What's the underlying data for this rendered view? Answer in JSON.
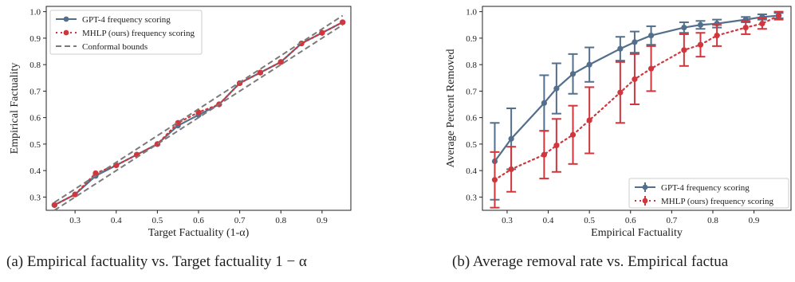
{
  "captions": {
    "a": "(a) Empirical factuality vs. Target factuality 1 − α",
    "b": "(b) Average removal rate vs. Empirical factua"
  },
  "colors": {
    "gpt4": "#536f8c",
    "mhlp": "#d2363d",
    "bounds": "#7a7a7a",
    "errbar_mhlp": "#d2363d",
    "errbar_gpt4": "#536f8c"
  },
  "chart_data": [
    {
      "type": "line",
      "xlabel": "Target Factuality (1-α)",
      "ylabel": "Empirical Factuality",
      "xlim": [
        0.23,
        0.97
      ],
      "ylim": [
        0.25,
        1.02
      ],
      "xticks": [
        "0.3",
        "0.4",
        "0.5",
        "0.6",
        "0.7",
        "0.8",
        "0.9"
      ],
      "yticks": [
        "0.3",
        "0.4",
        "0.5",
        "0.6",
        "0.7",
        "0.8",
        "0.9",
        "1.0"
      ],
      "legend_position": "top-left",
      "x": [
        0.25,
        0.3,
        0.35,
        0.4,
        0.45,
        0.5,
        0.55,
        0.6,
        0.65,
        0.7,
        0.75,
        0.8,
        0.85,
        0.9,
        0.95
      ],
      "series": [
        {
          "name": "GPT-4 frequency scoring",
          "style": "solid",
          "marker": "circle",
          "values": [
            0.27,
            0.31,
            0.38,
            0.42,
            0.46,
            0.5,
            0.57,
            0.61,
            0.65,
            0.73,
            0.77,
            0.81,
            0.88,
            0.92,
            0.96
          ]
        },
        {
          "name": "MHLP (ours) frequency scoring",
          "style": "dotted",
          "marker": "circle",
          "values": [
            0.27,
            0.31,
            0.39,
            0.42,
            0.46,
            0.5,
            0.58,
            0.62,
            0.65,
            0.73,
            0.77,
            0.81,
            0.88,
            0.92,
            0.96
          ]
        },
        {
          "name": "Conformal bounds",
          "style": "dashed",
          "marker": "none",
          "lines": [
            {
              "x": [
                0.25,
                0.95
              ],
              "y": [
                0.25,
                0.95
              ]
            },
            {
              "x": [
                0.25,
                0.95
              ],
              "y": [
                0.28,
                0.985
              ]
            }
          ]
        }
      ]
    },
    {
      "type": "line",
      "xlabel": "Empirical Factuality",
      "ylabel": "Average Percent Removed",
      "xlim": [
        0.24,
        0.99
      ],
      "ylim": [
        0.25,
        1.02
      ],
      "xticks": [
        "0.3",
        "0.4",
        "0.5",
        "0.6",
        "0.7",
        "0.8",
        "0.9"
      ],
      "yticks": [
        "0.3",
        "0.4",
        "0.5",
        "0.6",
        "0.7",
        "0.8",
        "0.9",
        "1.0"
      ],
      "legend_position": "bottom-right",
      "series": [
        {
          "name": "GPT-4 frequency scoring",
          "style": "solid",
          "marker": "circle",
          "errorbars": true,
          "x": [
            0.27,
            0.31,
            0.39,
            0.42,
            0.46,
            0.5,
            0.575,
            0.61,
            0.65,
            0.73,
            0.77,
            0.81,
            0.88,
            0.92,
            0.96
          ],
          "y": [
            0.435,
            0.52,
            0.655,
            0.71,
            0.765,
            0.8,
            0.86,
            0.885,
            0.91,
            0.94,
            0.95,
            0.955,
            0.97,
            0.98,
            0.985
          ],
          "err": [
            0.145,
            0.115,
            0.105,
            0.095,
            0.075,
            0.065,
            0.045,
            0.04,
            0.035,
            0.02,
            0.015,
            0.015,
            0.01,
            0.01,
            0.01
          ]
        },
        {
          "name": "MHLP (ours) frequency scoring",
          "style": "dotted",
          "marker": "circle",
          "errorbars": true,
          "x": [
            0.27,
            0.31,
            0.39,
            0.42,
            0.46,
            0.5,
            0.575,
            0.61,
            0.65,
            0.73,
            0.77,
            0.81,
            0.88,
            0.92,
            0.96
          ],
          "y": [
            0.365,
            0.405,
            0.46,
            0.495,
            0.535,
            0.59,
            0.695,
            0.745,
            0.785,
            0.855,
            0.875,
            0.91,
            0.94,
            0.955,
            0.985
          ],
          "err": [
            0.105,
            0.085,
            0.09,
            0.1,
            0.11,
            0.125,
            0.115,
            0.095,
            0.085,
            0.06,
            0.045,
            0.04,
            0.025,
            0.02,
            0.015
          ]
        }
      ]
    }
  ]
}
